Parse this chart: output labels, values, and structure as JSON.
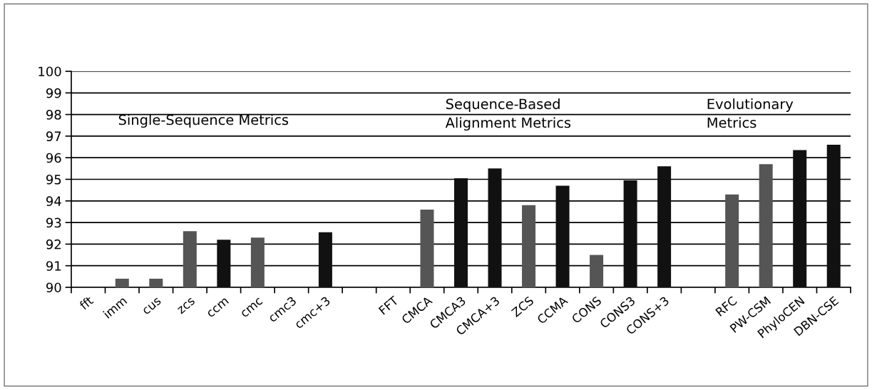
{
  "chart_data": {
    "type": "bar",
    "categories": [
      "fft",
      "imm",
      "cus",
      "zcs",
      "ccm",
      "cmc",
      "cmc3",
      "cmc+3",
      null,
      "FFT",
      "CMCA",
      "CMCA3",
      "CMCA+3",
      "ZCS",
      "CCMA",
      "CONS",
      "CONS3",
      "CONS+3",
      null,
      "RFC",
      "PW-CSM",
      "PhyloCEN",
      "DBN-CSE"
    ],
    "values": [
      null,
      90.4,
      90.4,
      92.6,
      92.2,
      92.3,
      null,
      92.55,
      null,
      null,
      93.6,
      95.05,
      95.5,
      93.8,
      94.7,
      91.5,
      94.95,
      95.6,
      null,
      94.3,
      95.7,
      96.35,
      96.6
    ],
    "colors": [
      "#555555",
      "#555555",
      "#555555",
      "#555555",
      "#111111",
      "#555555",
      "#111111",
      "#111111",
      "#111111",
      "#555555",
      "#555555",
      "#111111",
      "#111111",
      "#555555",
      "#111111",
      "#555555",
      "#111111",
      "#111111",
      "#111111",
      "#555555",
      "#555555",
      "#111111",
      "#111111"
    ],
    "ylim": [
      90,
      100
    ],
    "yticks": [
      90,
      91,
      92,
      93,
      94,
      95,
      96,
      97,
      98,
      99,
      100
    ],
    "grid": "y",
    "annotations": [
      "Single-Sequence Metrics",
      "Sequence-Based\nAlignment Metrics",
      "Evolutionary\nMetrics"
    ]
  }
}
